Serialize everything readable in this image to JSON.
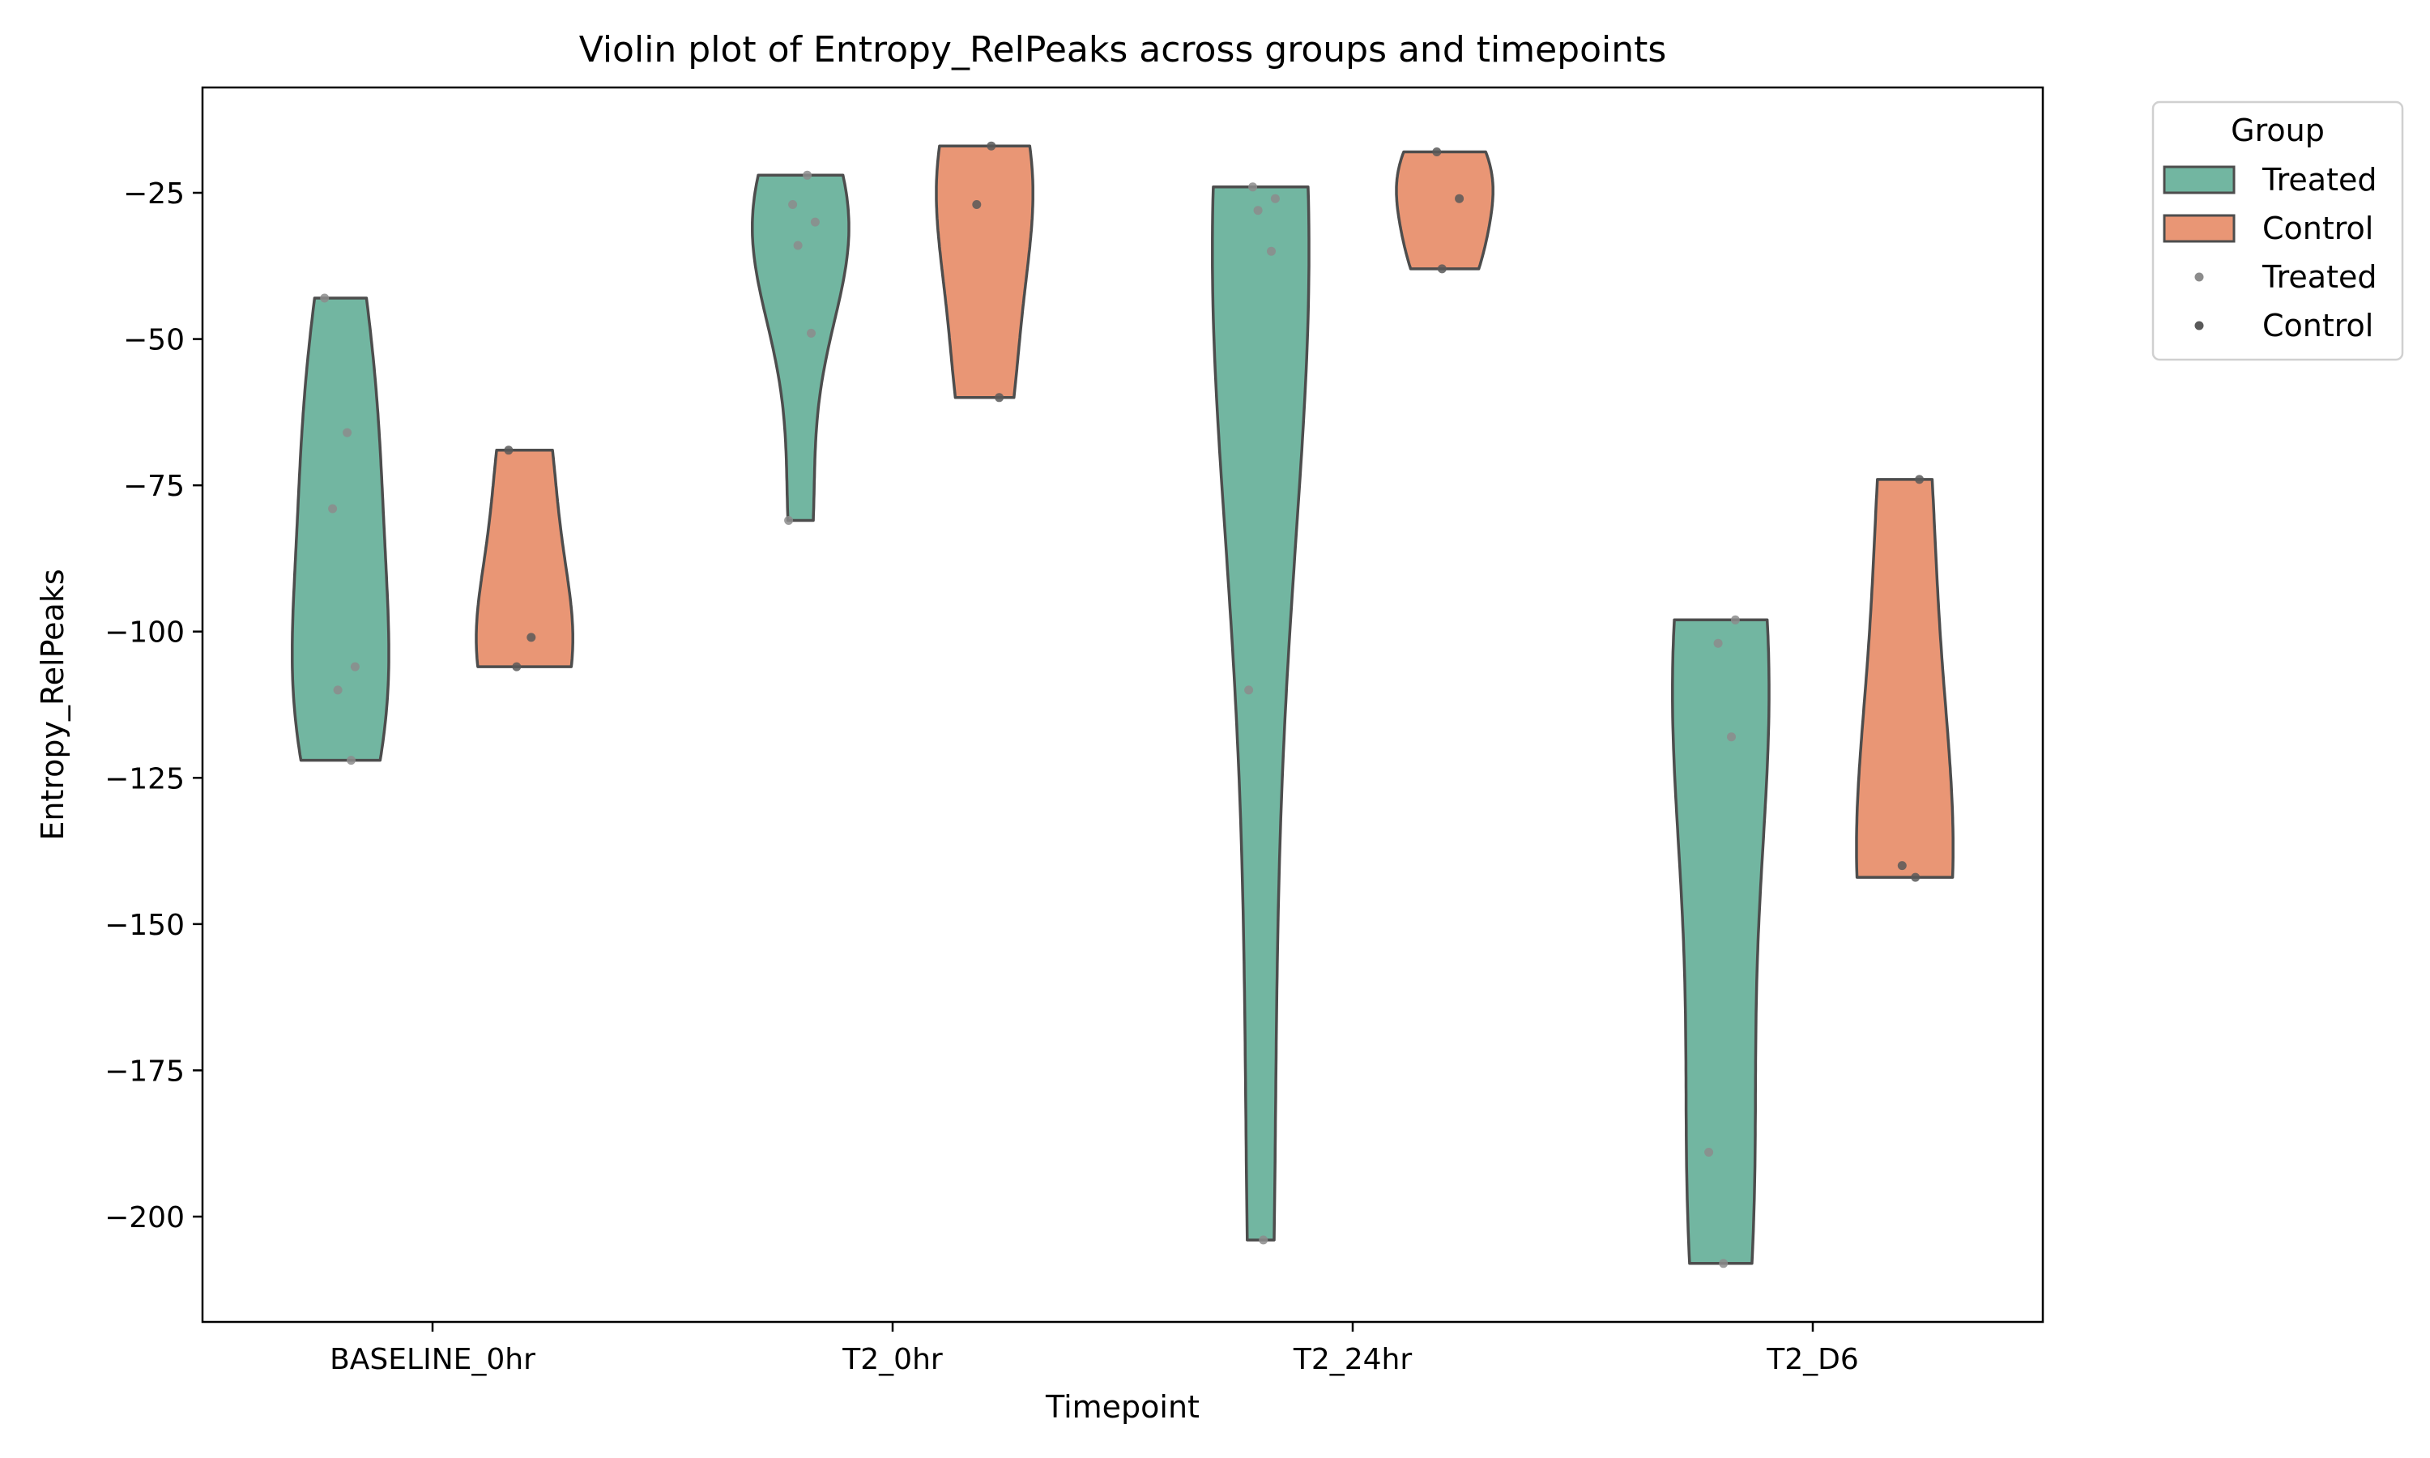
{
  "chart_data": {
    "type": "violin",
    "title": "Violin plot of Entropy_RelPeaks across groups and timepoints",
    "xlabel": "Timepoint",
    "ylabel": "Entropy_RelPeaks",
    "categories": [
      "BASELINE_0hr",
      "T2_0hr",
      "T2_24hr",
      "T2_D6"
    ],
    "ylim": [
      -218,
      -7
    ],
    "yticks": [
      -25,
      -50,
      -75,
      -100,
      -125,
      -150,
      -175,
      -200
    ],
    "grid": false,
    "legend": {
      "title": "Group",
      "placement": "upper right, outside plot",
      "entries": [
        {
          "label": "Treated",
          "kind": "patch",
          "color": "#72b6a1"
        },
        {
          "label": "Control",
          "kind": "patch",
          "color": "#e99675"
        },
        {
          "label": "Treated",
          "kind": "dot",
          "color": "#8c8c8c"
        },
        {
          "label": "Control",
          "kind": "dot",
          "color": "#595959"
        }
      ]
    },
    "series": [
      {
        "name": "Treated",
        "color": "#72b6a1",
        "points_color": "#8c8c8c",
        "values": [
          [
            -43,
            -66,
            -79,
            -106,
            -110,
            -122
          ],
          [
            -22,
            -27,
            -30,
            -34,
            -49,
            -81
          ],
          [
            -24,
            -26,
            -28,
            -35,
            -110,
            -204
          ],
          [
            -98,
            -102,
            -118,
            -189,
            -208
          ]
        ]
      },
      {
        "name": "Control",
        "color": "#e99675",
        "points_color": "#595959",
        "values": [
          [
            -69,
            -101,
            -106
          ],
          [
            -17,
            -27,
            -60
          ],
          [
            -18,
            -26,
            -38
          ],
          [
            -74,
            -140,
            -142
          ]
        ]
      }
    ]
  }
}
